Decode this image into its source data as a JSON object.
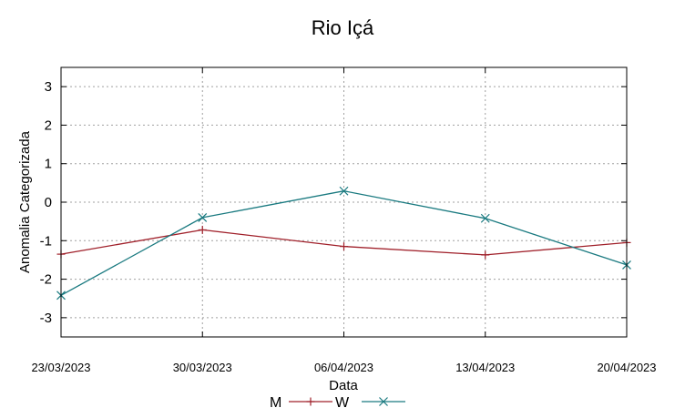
{
  "chart_data": {
    "type": "line",
    "title": "Rio Içá",
    "xlabel": "Data",
    "ylabel": "Anomalia Categorizada",
    "categories": [
      "23/03/2023",
      "30/03/2023",
      "06/04/2023",
      "13/04/2023",
      "20/04/2023"
    ],
    "ylim": [
      -3.5,
      3.5
    ],
    "yticks": [
      -3,
      -2,
      -1,
      0,
      1,
      2,
      3
    ],
    "grid": true,
    "legend_position": "bottom-center",
    "series": [
      {
        "name": "M",
        "color": "#a0202a",
        "marker": "plus",
        "values": [
          -1.35,
          -0.72,
          -1.15,
          -1.37,
          -1.05
        ]
      },
      {
        "name": "W",
        "color": "#1a7a80",
        "marker": "cross",
        "values": [
          -2.42,
          -0.4,
          0.29,
          -0.42,
          -1.63
        ]
      }
    ]
  }
}
